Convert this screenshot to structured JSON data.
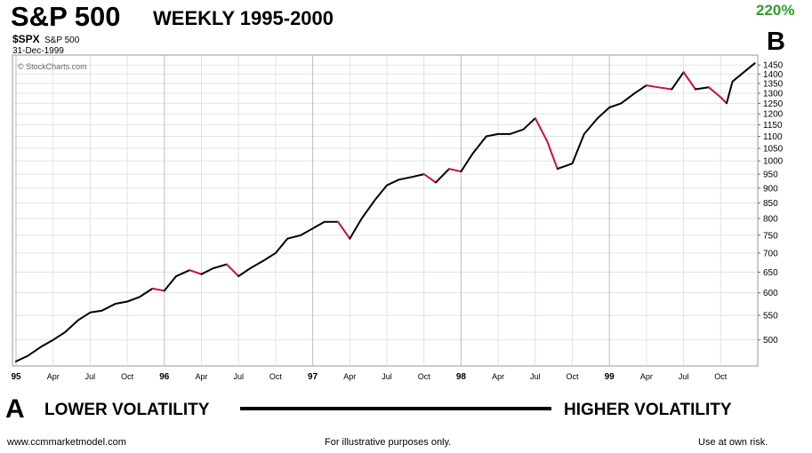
{
  "chart_data": {
    "type": "line",
    "title": "S&P 500",
    "subtitle": "WEEKLY 1995-2000",
    "symbol": "$SPX",
    "symbol_name": "S&P 500",
    "date": "31-Dec-1999",
    "source": "© StockCharts.com",
    "annotations": {
      "gain": "220%",
      "end_label": "B",
      "start_label": "A",
      "left_text": "LOWER VOLATILITY",
      "right_text": "HIGHER VOLATILITY"
    },
    "footer": {
      "left": "www.ccmmarketmodel.com",
      "center": "For illustrative purposes only.",
      "right": "Use at own risk."
    },
    "color": "#000000",
    "down_color": "#c8103c",
    "log": true,
    "grid": true,
    "x": [
      1995.0,
      1995.08,
      1995.17,
      1995.25,
      1995.33,
      1995.42,
      1995.5,
      1995.58,
      1995.67,
      1995.75,
      1995.83,
      1995.92,
      1996.0,
      1996.08,
      1996.17,
      1996.25,
      1996.33,
      1996.42,
      1996.5,
      1996.58,
      1996.67,
      1996.75,
      1996.83,
      1996.92,
      1997.0,
      1997.08,
      1997.17,
      1997.25,
      1997.33,
      1997.42,
      1997.5,
      1997.58,
      1997.67,
      1997.75,
      1997.83,
      1997.92,
      1998.0,
      1998.08,
      1998.17,
      1998.25,
      1998.33,
      1998.42,
      1998.5,
      1998.58,
      1998.65,
      1998.75,
      1998.83,
      1998.92,
      1999.0,
      1999.08,
      1999.17,
      1999.25,
      1999.33,
      1999.42,
      1999.5,
      1999.58,
      1999.67,
      1999.75,
      1999.79,
      1999.83,
      1999.92,
      1999.98
    ],
    "values": [
      460,
      470,
      487,
      500,
      515,
      540,
      556,
      560,
      575,
      580,
      590,
      610,
      605,
      640,
      655,
      645,
      660,
      670,
      640,
      660,
      680,
      700,
      740,
      750,
      770,
      790,
      790,
      740,
      800,
      860,
      910,
      930,
      940,
      950,
      920,
      970,
      960,
      1030,
      1100,
      1110,
      1110,
      1130,
      1180,
      1080,
      970,
      990,
      1110,
      1180,
      1230,
      1250,
      1300,
      1340,
      1330,
      1320,
      1410,
      1320,
      1330,
      1280,
      1250,
      1360,
      1420,
      1460
    ],
    "xlim": [
      1994.976,
      2000.0
    ],
    "ylim": [
      452,
      1507
    ],
    "xticks": [
      {
        "value": 1995,
        "label": "95"
      },
      {
        "value": 1995.25,
        "label": "Apr"
      },
      {
        "value": 1995.5,
        "label": "Jul"
      },
      {
        "value": 1995.75,
        "label": "Oct"
      },
      {
        "value": 1996,
        "label": "96"
      },
      {
        "value": 1996.25,
        "label": "Apr"
      },
      {
        "value": 1996.5,
        "label": "Jul"
      },
      {
        "value": 1996.75,
        "label": "Oct"
      },
      {
        "value": 1997,
        "label": "97"
      },
      {
        "value": 1997.25,
        "label": "Apr"
      },
      {
        "value": 1997.5,
        "label": "Jul"
      },
      {
        "value": 1997.75,
        "label": "Oct"
      },
      {
        "value": 1998,
        "label": "98"
      },
      {
        "value": 1998.25,
        "label": "Apr"
      },
      {
        "value": 1998.5,
        "label": "Jul"
      },
      {
        "value": 1998.75,
        "label": "Oct"
      },
      {
        "value": 1999,
        "label": "99"
      },
      {
        "value": 1999.25,
        "label": "Apr"
      },
      {
        "value": 1999.5,
        "label": "Jul"
      },
      {
        "value": 1999.75,
        "label": "Oct"
      }
    ],
    "yticks": [
      500,
      550,
      600,
      650,
      700,
      750,
      800,
      850,
      900,
      950,
      1000,
      1050,
      1100,
      1150,
      1200,
      1250,
      1300,
      1350,
      1400,
      1450
    ]
  }
}
